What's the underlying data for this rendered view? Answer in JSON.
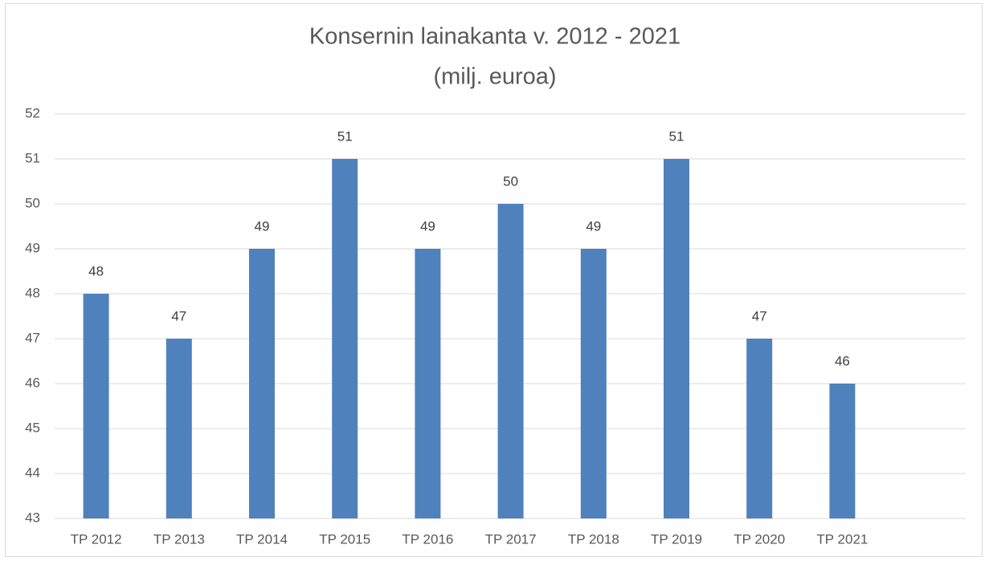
{
  "chart_data": {
    "type": "bar",
    "title": "Konsernin lainakanta v. 2012 - 2021",
    "subtitle": "(milj. euroa)",
    "categories": [
      "TP 2012",
      "TP 2013",
      "TP 2014",
      "TP 2015",
      "TP 2016",
      "TP 2017",
      "TP 2018",
      "TP 2019",
      "TP 2020",
      "TP 2021"
    ],
    "values": [
      48,
      47,
      49,
      51,
      49,
      50,
      49,
      51,
      47,
      46
    ],
    "color": "#4f81bd",
    "ylim": [
      43,
      52
    ],
    "yticks": [
      43,
      44,
      45,
      46,
      47,
      48,
      49,
      50,
      51,
      52
    ],
    "grid": true
  }
}
